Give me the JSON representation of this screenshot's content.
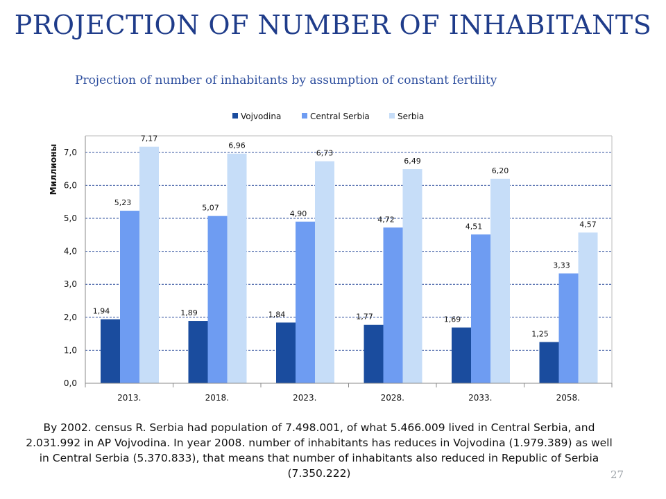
{
  "slide": {
    "title": "PROJECTION OF NUMBER OF INHABITANTS",
    "footnote": "By 2002. census R. Serbia had population of 7.498.001, of what 5.466.009 lived in Central Serbia, and 2.031.992 in AP Vojvodina.  In year 2008. number of inhabitants has reduces in Vojvodina (1.979.389) as well in Central Serbia (5.370.833), that means that number of inhabitants also reduced in Republic of Serbia (7.350.222)",
    "page_number": "27"
  },
  "chart_data": {
    "type": "bar",
    "title": "Projection of number of inhabitants by assumption of constant fertility",
    "xlabel": "",
    "ylabel": "Миллионы",
    "categories": [
      "2013.",
      "2018.",
      "2023.",
      "2028.",
      "2033.",
      "2058."
    ],
    "series": [
      {
        "name": "Vojvodina",
        "color": "#1A4C9E",
        "values": [
          1.94,
          1.89,
          1.84,
          1.77,
          1.69,
          1.25
        ],
        "labels": [
          "1,94",
          "1,89",
          "1,84",
          "1,77",
          "1,69",
          "1,25"
        ]
      },
      {
        "name": "Central Serbia",
        "color": "#6E9CF2",
        "values": [
          5.23,
          5.07,
          4.9,
          4.72,
          4.51,
          3.33
        ],
        "labels": [
          "5,23",
          "5,07",
          "4,90",
          "4,72",
          "4,51",
          "3,33"
        ]
      },
      {
        "name": "Serbia",
        "color": "#C6DDF8",
        "values": [
          7.17,
          6.96,
          6.73,
          6.49,
          6.2,
          4.57
        ],
        "labels": [
          "7,17",
          "6,96",
          "6,73",
          "6,49",
          "6,20",
          "4,57"
        ]
      }
    ],
    "ylim": [
      0,
      7.5
    ],
    "yticks": [
      0,
      1,
      2,
      3,
      4,
      5,
      6,
      7
    ],
    "ytick_labels": [
      "0,0",
      "1,0",
      "2,0",
      "3,0",
      "4,0",
      "5,0",
      "6,0",
      "7,0"
    ],
    "grid": true,
    "legend": "top-center"
  }
}
